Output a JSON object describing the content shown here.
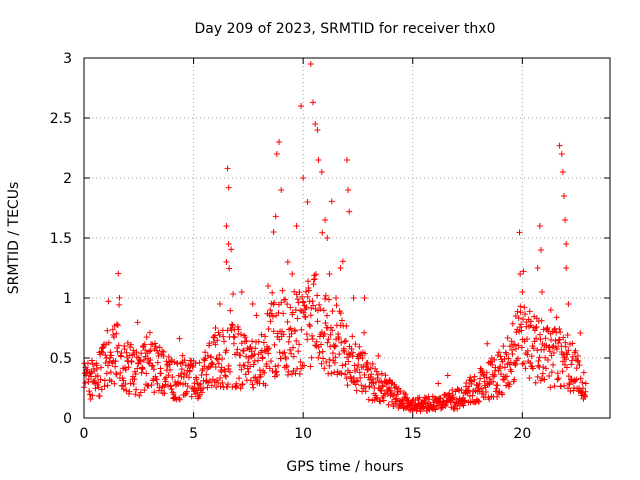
{
  "chart_data": {
    "type": "scatter",
    "title": "Day 209 of 2023, SRMTID for receiver thx0",
    "xlabel": "GPS time / hours",
    "ylabel": "SRMTID / TECUs",
    "xlim": [
      0,
      24
    ],
    "ylim": [
      0,
      3
    ],
    "xticks": [
      0,
      5,
      10,
      15,
      20
    ],
    "yticks": [
      0,
      0.5,
      1,
      1.5,
      2,
      2.5,
      3
    ],
    "x_tick_labels": [
      "0",
      "5",
      "10",
      "15",
      "20"
    ],
    "y_tick_labels": [
      "0",
      "0.5",
      "1",
      "1.5",
      "2",
      "2.5",
      "3"
    ],
    "grid": true,
    "marker": "+",
    "color": "#ff0000",
    "series": [
      {
        "name": "thx0",
        "baseline_profile": {
          "x": [
            0,
            0.5,
            1.0,
            1.5,
            2.0,
            2.5,
            3.0,
            4.0,
            5.0,
            5.5,
            6.0,
            7.0,
            8.0,
            8.5,
            9.0,
            10.0,
            10.5,
            11.0,
            12.0,
            13.0,
            14.0,
            15.0,
            16.0,
            17.0,
            18.0,
            19.0,
            19.5,
            20.0,
            21.0,
            22.0,
            22.5,
            22.9
          ],
          "y": [
            0.3,
            0.28,
            0.45,
            0.55,
            0.4,
            0.35,
            0.45,
            0.3,
            0.3,
            0.35,
            0.45,
            0.5,
            0.4,
            0.6,
            0.7,
            0.65,
            0.8,
            0.7,
            0.5,
            0.3,
            0.2,
            0.1,
            0.12,
            0.15,
            0.25,
            0.35,
            0.5,
            0.6,
            0.5,
            0.45,
            0.4,
            0.25
          ]
        },
        "spikes": [
          {
            "x": 1.5,
            "y": 0.78
          },
          {
            "x": 2.7,
            "y": 0.6
          },
          {
            "x": 4.5,
            "y": 0.52
          },
          {
            "x": 6.0,
            "y": 0.75
          },
          {
            "x": 6.2,
            "y": 0.95
          },
          {
            "x": 6.55,
            "y": 2.08
          },
          {
            "x": 6.6,
            "y": 1.92
          },
          {
            "x": 6.5,
            "y": 1.6
          },
          {
            "x": 6.6,
            "y": 1.45
          },
          {
            "x": 6.5,
            "y": 1.3
          },
          {
            "x": 7.2,
            "y": 1.05
          },
          {
            "x": 7.7,
            "y": 0.95
          },
          {
            "x": 8.4,
            "y": 1.1
          },
          {
            "x": 8.65,
            "y": 1.55
          },
          {
            "x": 8.75,
            "y": 1.68
          },
          {
            "x": 8.8,
            "y": 2.2
          },
          {
            "x": 8.9,
            "y": 2.3
          },
          {
            "x": 9.0,
            "y": 1.9
          },
          {
            "x": 9.3,
            "y": 1.3
          },
          {
            "x": 9.5,
            "y": 1.2
          },
          {
            "x": 9.7,
            "y": 1.6
          },
          {
            "x": 9.9,
            "y": 2.6
          },
          {
            "x": 10.0,
            "y": 2.0
          },
          {
            "x": 10.2,
            "y": 1.8
          },
          {
            "x": 10.35,
            "y": 2.95
          },
          {
            "x": 10.45,
            "y": 2.63
          },
          {
            "x": 10.55,
            "y": 2.45
          },
          {
            "x": 10.65,
            "y": 2.4
          },
          {
            "x": 10.7,
            "y": 2.15
          },
          {
            "x": 10.85,
            "y": 2.05
          },
          {
            "x": 11.0,
            "y": 1.65
          },
          {
            "x": 11.1,
            "y": 1.5
          },
          {
            "x": 11.2,
            "y": 1.2
          },
          {
            "x": 11.5,
            "y": 1.0
          },
          {
            "x": 11.7,
            "y": 1.25
          },
          {
            "x": 12.0,
            "y": 2.15
          },
          {
            "x": 12.05,
            "y": 1.9
          },
          {
            "x": 12.1,
            "y": 1.72
          },
          {
            "x": 12.3,
            "y": 1.0
          },
          {
            "x": 12.8,
            "y": 1.0
          },
          {
            "x": 19.7,
            "y": 0.85
          },
          {
            "x": 19.9,
            "y": 1.2
          },
          {
            "x": 20.0,
            "y": 1.05
          },
          {
            "x": 20.8,
            "y": 1.6
          },
          {
            "x": 20.85,
            "y": 1.4
          },
          {
            "x": 20.7,
            "y": 1.25
          },
          {
            "x": 20.9,
            "y": 1.05
          },
          {
            "x": 21.3,
            "y": 0.9
          },
          {
            "x": 21.7,
            "y": 2.27
          },
          {
            "x": 21.8,
            "y": 2.2
          },
          {
            "x": 21.85,
            "y": 2.05
          },
          {
            "x": 21.9,
            "y": 1.85
          },
          {
            "x": 21.95,
            "y": 1.65
          },
          {
            "x": 22.0,
            "y": 1.45
          },
          {
            "x": 22.0,
            "y": 1.25
          },
          {
            "x": 22.1,
            "y": 0.95
          }
        ]
      }
    ]
  }
}
